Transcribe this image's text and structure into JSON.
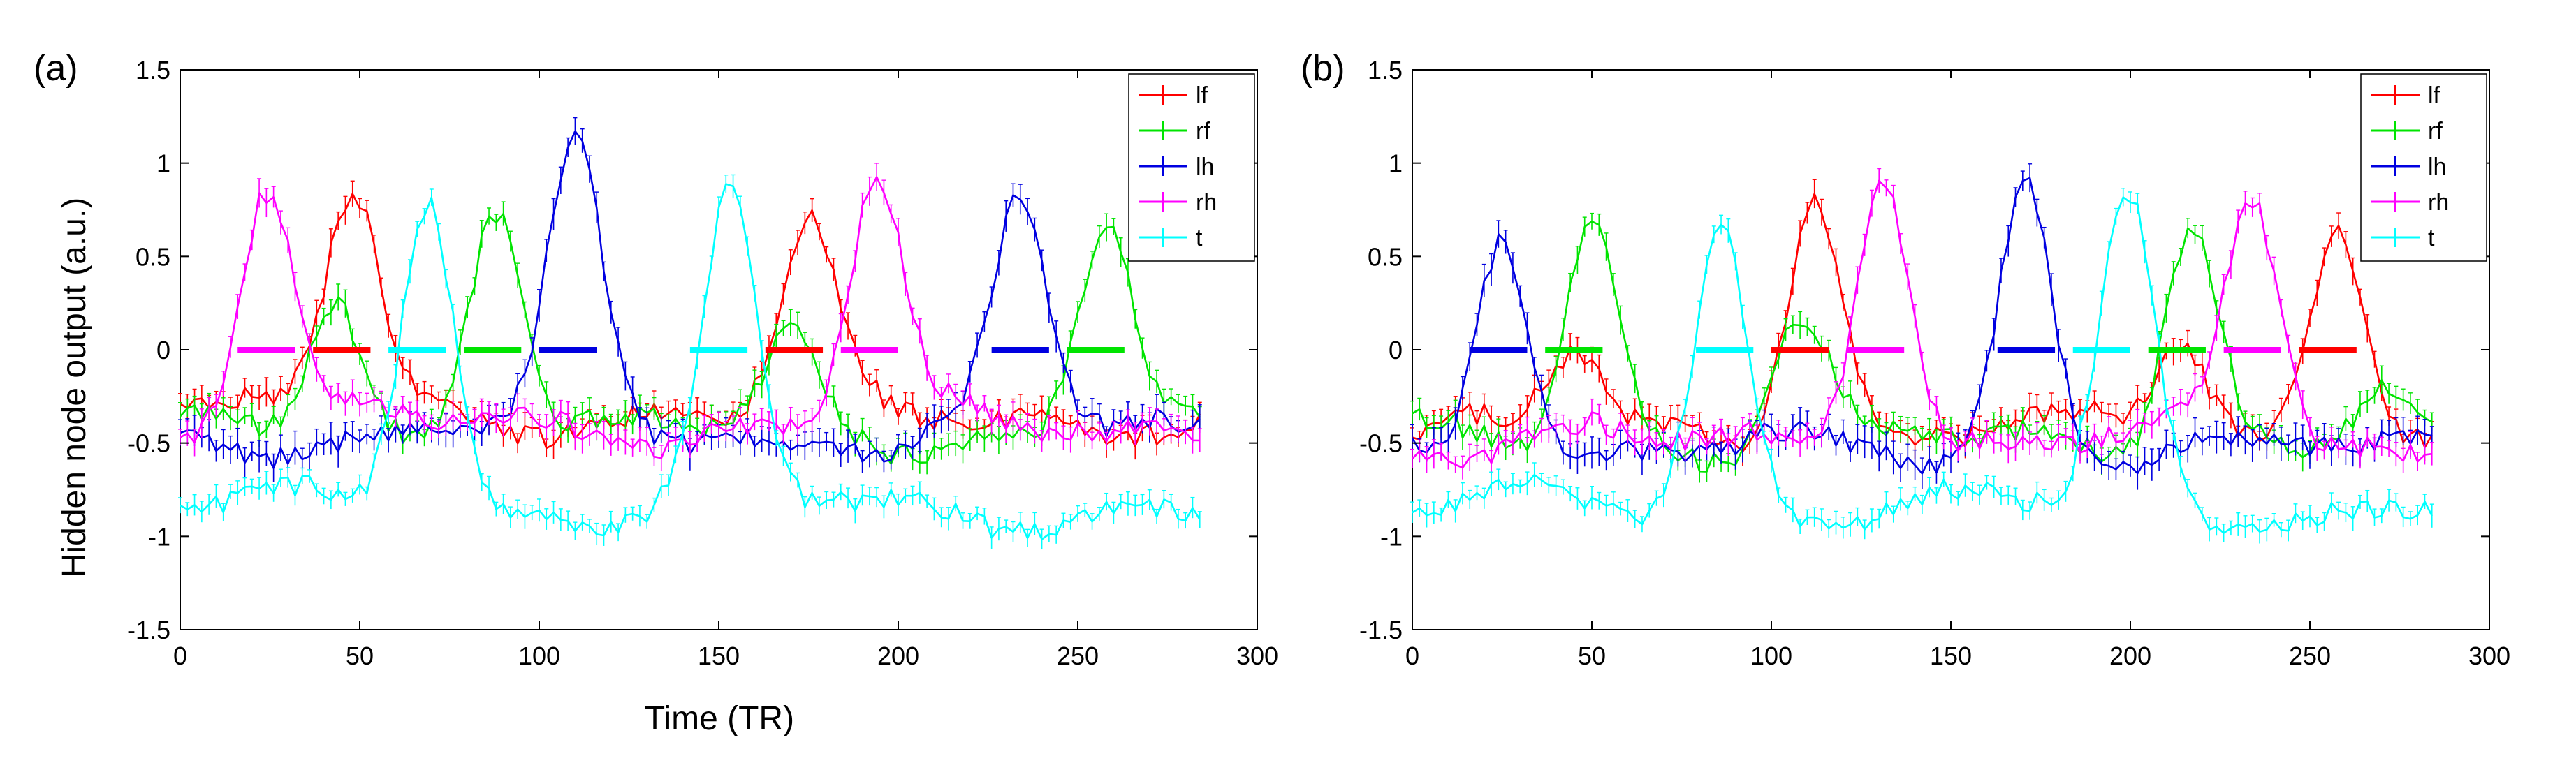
{
  "figure": {
    "ylabel": "Hidden node output (a.u.)",
    "xlabel": "Time (TR)"
  },
  "colors": {
    "lf": "#ff0000",
    "rf": "#00e400",
    "lh": "#0000e0",
    "rh": "#ff00ff",
    "t": "#00ffff"
  },
  "chart_data": [
    {
      "type": "line",
      "panel_label": "(a)",
      "xlabel": "Time (TR)",
      "ylabel": "Hidden node output (a.u.)",
      "xlim": [
        0,
        300
      ],
      "ylim": [
        -1.5,
        1.5
      ],
      "xticks": [
        0,
        50,
        100,
        150,
        200,
        250,
        300
      ],
      "yticks": [
        -1.5,
        -1,
        -0.5,
        0,
        0.5,
        1,
        1.5
      ],
      "xtick_labels": [
        "0",
        "50",
        "100",
        "150",
        "200",
        "250",
        "300"
      ],
      "ytick_labels": [
        "-1.5",
        "-1",
        "-0.5",
        "0",
        "0.5",
        "1",
        "1.5"
      ],
      "grid": false,
      "legend_position": "top-right",
      "error_bars": true,
      "series": [
        {
          "name": "lf",
          "baseline": -0.35,
          "noise": 0.06,
          "err": 0.06,
          "peaks": [
            [
              48,
              0.82
            ],
            [
              175,
              0.62
            ]
          ]
        },
        {
          "name": "rf",
          "baseline": -0.45,
          "noise": 0.06,
          "err": 0.06,
          "peaks": [
            [
              43,
              0.3
            ],
            [
              88,
              0.84
            ],
            [
              170,
              0.02
            ],
            [
              258,
              0.72
            ]
          ]
        },
        {
          "name": "lh",
          "baseline": -0.45,
          "noise": 0.06,
          "err": 0.07,
          "peaks": [
            [
              110,
              1.02
            ],
            [
              234,
              0.76
            ]
          ]
        },
        {
          "name": "rh",
          "baseline": -0.4,
          "noise": 0.06,
          "err": 0.06,
          "peaks": [
            [
              24,
              0.88
            ],
            [
              194,
              0.88
            ]
          ]
        },
        {
          "name": "t",
          "baseline": -0.85,
          "noise": 0.06,
          "err": 0.05,
          "peaks": [
            [
              69,
              0.84
            ],
            [
              153,
              0.74
            ]
          ]
        }
      ],
      "task_blocks": [
        {
          "label": "rh",
          "x": [
            16,
            32
          ],
          "y": 0
        },
        {
          "label": "lf",
          "x": [
            37,
            53
          ],
          "y": 0
        },
        {
          "label": "t",
          "x": [
            58,
            74
          ],
          "y": 0
        },
        {
          "label": "rf",
          "x": [
            79,
            95
          ],
          "y": 0
        },
        {
          "label": "lh",
          "x": [
            100,
            116
          ],
          "y": 0
        },
        {
          "label": "t",
          "x": [
            142,
            158
          ],
          "y": 0
        },
        {
          "label": "lf",
          "x": [
            163,
            179
          ],
          "y": 0
        },
        {
          "label": "rh",
          "x": [
            184,
            200
          ],
          "y": 0
        },
        {
          "label": "lh",
          "x": [
            226,
            242
          ],
          "y": 0
        },
        {
          "label": "rf",
          "x": [
            247,
            263
          ],
          "y": 0
        }
      ]
    },
    {
      "type": "line",
      "panel_label": "(b)",
      "xlabel": "",
      "ylabel": "",
      "xlim": [
        0,
        300
      ],
      "ylim": [
        -1.5,
        1.5
      ],
      "xticks": [
        0,
        50,
        100,
        150,
        200,
        250,
        300
      ],
      "yticks": [
        -1.5,
        -1,
        -0.5,
        0,
        0.5,
        1,
        1.5
      ],
      "xtick_labels": [
        "0",
        "50",
        "100",
        "150",
        "200",
        "250",
        "300"
      ],
      "ytick_labels": [
        "-1.5",
        "-1",
        "-0.5",
        "0",
        "0.5",
        "1",
        "1.5"
      ],
      "grid": false,
      "legend_position": "top-right",
      "error_bars": true,
      "series": [
        {
          "name": "lf",
          "baseline": -0.45,
          "noise": 0.06,
          "err": 0.06,
          "peaks": [
            [
              45,
              -0.05
            ],
            [
              112,
              0.87
            ],
            [
              214,
              0.05
            ],
            [
              258,
              0.72
            ]
          ]
        },
        {
          "name": "rf",
          "baseline": -0.5,
          "noise": 0.06,
          "err": 0.06,
          "peaks": [
            [
              50,
              0.74
            ],
            [
              108,
              0.15
            ],
            [
              217,
              0.74
            ],
            [
              270,
              -0.25
            ]
          ]
        },
        {
          "name": "lh",
          "baseline": -0.55,
          "noise": 0.06,
          "err": 0.07,
          "peaks": [
            [
              25,
              0.7
            ],
            [
              171,
              0.92
            ]
          ]
        },
        {
          "name": "rh",
          "baseline": -0.5,
          "noise": 0.06,
          "err": 0.06,
          "peaks": [
            [
              131,
              1.0
            ],
            [
              234,
              0.8
            ]
          ]
        },
        {
          "name": "t",
          "baseline": -0.85,
          "noise": 0.06,
          "err": 0.05,
          "peaks": [
            [
              86,
              0.68
            ],
            [
              199,
              0.8
            ]
          ]
        }
      ],
      "task_blocks": [
        {
          "label": "lh",
          "x": [
            16,
            32
          ],
          "y": 0
        },
        {
          "label": "rf",
          "x": [
            37,
            53
          ],
          "y": 0
        },
        {
          "label": "t",
          "x": [
            79,
            95
          ],
          "y": 0
        },
        {
          "label": "lf",
          "x": [
            100,
            116
          ],
          "y": 0
        },
        {
          "label": "rh",
          "x": [
            121,
            137
          ],
          "y": 0
        },
        {
          "label": "lh",
          "x": [
            163,
            179
          ],
          "y": 0
        },
        {
          "label": "t",
          "x": [
            184,
            200
          ],
          "y": 0
        },
        {
          "label": "rf",
          "x": [
            205,
            221
          ],
          "y": 0
        },
        {
          "label": "rh",
          "x": [
            226,
            242
          ],
          "y": 0
        },
        {
          "label": "lf",
          "x": [
            247,
            263
          ],
          "y": 0
        }
      ]
    }
  ]
}
